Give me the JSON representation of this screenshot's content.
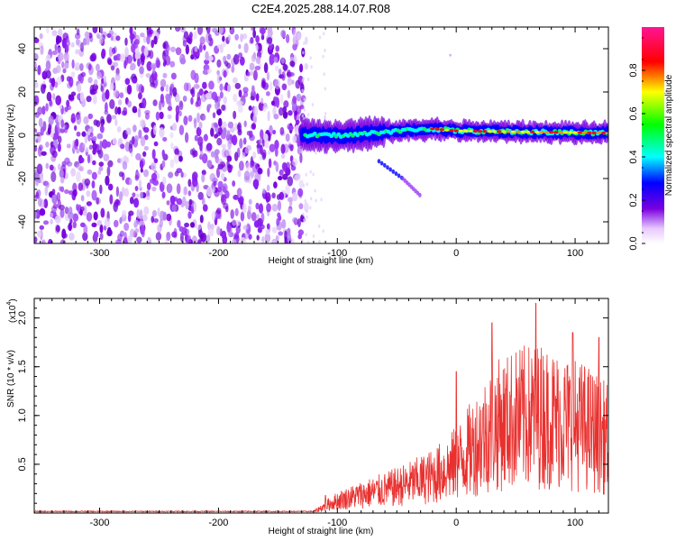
{
  "title": "C2E4.2025.288.14.07.R08",
  "chart_data": [
    {
      "type": "heatmap",
      "name": "spectrogram",
      "xlabel": "Height of straight line (km)",
      "ylabel": "Frequency (Hz)",
      "xlim": [
        -355,
        128
      ],
      "ylim": [
        -50,
        50
      ],
      "x_ticks": [
        -300,
        -200,
        -100,
        0,
        100
      ],
      "x_tick_labels": [
        "-300",
        "-200",
        "-100",
        "0",
        "100"
      ],
      "y_ticks": [
        -40,
        -20,
        0,
        20,
        40
      ],
      "y_tick_labels": [
        "-40",
        "-20",
        "0",
        "20",
        "40"
      ],
      "noise_region_x": [
        -355,
        -130
      ],
      "signal_band": {
        "x_start": -130,
        "x_end": 128,
        "center_freq_hz": [
          [
            -130,
            0
          ],
          [
            -90,
            0
          ],
          [
            -50,
            2
          ],
          [
            -20,
            3
          ],
          [
            0,
            2
          ],
          [
            128,
            1
          ]
        ],
        "peak_amplitude_x": [
          -10,
          100
        ]
      },
      "secondary_streak": [
        [
          -65,
          -12
        ],
        [
          -45,
          -20
        ],
        [
          -30,
          -28
        ]
      ],
      "colorbar": {
        "label": "Normalized spectral amplitude",
        "ticks": [
          0.0,
          0.2,
          0.4,
          0.6,
          0.8
        ],
        "tick_labels": [
          "0.0",
          "0.2",
          "0.4",
          "0.6",
          "0.8"
        ],
        "range": [
          0,
          1
        ],
        "colors": [
          "#ffffff",
          "#7a00e0",
          "#0000ff",
          "#00ffff",
          "#00ff00",
          "#ffff00",
          "#ff0000",
          "#ff1493"
        ]
      }
    },
    {
      "type": "line",
      "name": "snr",
      "xlabel": "Height of straight line (km)",
      "ylabel": "SNR (10 * v/v)",
      "multiplier_label": "(x10",
      "multiplier_exp": "4",
      "multiplier_close": ")",
      "xlim": [
        -355,
        128
      ],
      "ylim": [
        0.0,
        2.2
      ],
      "x_ticks": [
        -300,
        -200,
        -100,
        0,
        100
      ],
      "x_tick_labels": [
        "-300",
        "-200",
        "-100",
        "0",
        "100"
      ],
      "y_ticks": [
        0.5,
        1.0,
        1.5,
        2.0
      ],
      "y_tick_labels": [
        "0.5",
        "1.0",
        "1.5",
        "2.0"
      ],
      "line_color": "#e8312f",
      "envelope": [
        [
          -355,
          0.01
        ],
        [
          -120,
          0.02
        ],
        [
          -110,
          0.12
        ],
        [
          -100,
          0.2
        ],
        [
          -80,
          0.3
        ],
        [
          -60,
          0.38
        ],
        [
          -40,
          0.48
        ],
        [
          -20,
          0.6
        ],
        [
          -5,
          0.75
        ],
        [
          5,
          0.9
        ],
        [
          15,
          1.1
        ],
        [
          30,
          1.4
        ],
        [
          50,
          1.55
        ],
        [
          70,
          1.6
        ],
        [
          90,
          1.5
        ],
        [
          110,
          1.4
        ],
        [
          128,
          1.2
        ]
      ],
      "peaks": [
        [
          -110,
          0.18
        ],
        [
          0,
          1.45
        ],
        [
          30,
          1.95
        ],
        [
          67,
          2.15
        ],
        [
          98,
          1.85
        ],
        [
          120,
          1.8
        ]
      ]
    }
  ]
}
